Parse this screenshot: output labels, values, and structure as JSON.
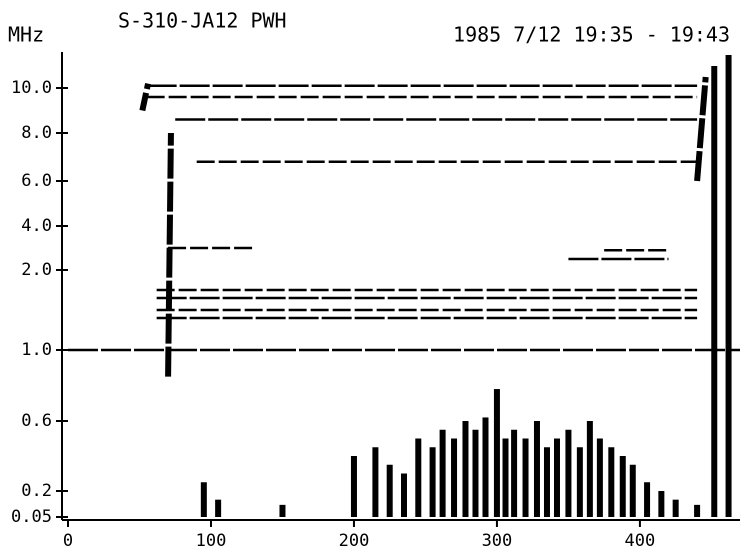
{
  "chart_data": {
    "type": "spectrogram",
    "y_label": "MHz",
    "title": "S-310-JA12 PWH",
    "subtitle": "1985 7/12 19:35 - 19:43",
    "xlim": [
      0,
      470
    ],
    "xticks": [
      0,
      100,
      200,
      300,
      400
    ],
    "ylim": [
      0.05,
      11.5
    ],
    "yticks": [
      {
        "value": 10,
        "label": "10.0"
      },
      {
        "value": 8,
        "label": "8.0"
      },
      {
        "value": 6,
        "label": "6.0"
      },
      {
        "value": 4,
        "label": "4.0"
      },
      {
        "value": 2,
        "label": "2.0"
      },
      {
        "value": 1,
        "label": "1.0"
      },
      {
        "value": 0.6,
        "label": "0.6"
      },
      {
        "value": 0.2,
        "label": "0.2"
      },
      0.05
    ],
    "color": "#000000",
    "traces": [
      {
        "x": [
          0,
          470
        ],
        "y": [
          1.0,
          1.0
        ]
      },
      {
        "x": [
          62,
          440
        ],
        "y": [
          1.75,
          1.75
        ]
      },
      {
        "x": [
          62,
          440
        ],
        "y": [
          1.65,
          1.65
        ]
      },
      {
        "x": [
          62,
          440
        ],
        "y": [
          1.5,
          1.5
        ]
      },
      {
        "x": [
          62,
          440
        ],
        "y": [
          1.4,
          1.4
        ]
      },
      {
        "x": [
          90,
          440
        ],
        "y": [
          6.8,
          6.8
        ]
      },
      {
        "x": [
          75,
          440
        ],
        "y": [
          8.6,
          8.6
        ]
      },
      {
        "x": [
          55,
          440
        ],
        "y": [
          9.6,
          9.6
        ]
      },
      {
        "x": [
          55,
          440
        ],
        "y": [
          10.1,
          10.1
        ]
      },
      {
        "x": [
          70,
          130
        ],
        "y": [
          3.0,
          3.0
        ]
      },
      {
        "x": [
          350,
          420
        ],
        "y": [
          2.5,
          2.5
        ]
      },
      {
        "x": [
          375,
          420
        ],
        "y": [
          2.9,
          2.9
        ]
      },
      {
        "x": [
          70,
          72
        ],
        "y": [
          0.85,
          8.0
        ]
      },
      {
        "x": [
          52,
          56
        ],
        "y": [
          9.0,
          10.2
        ]
      },
      {
        "x": [
          440,
          446
        ],
        "y": [
          6.0,
          10.5
        ]
      }
    ],
    "bursts": {
      "x": [
        95,
        105,
        150,
        200,
        215,
        225,
        235,
        245,
        255,
        262,
        270,
        278,
        285,
        292,
        300,
        306,
        312,
        320,
        328,
        335,
        342,
        350,
        358,
        365,
        372,
        380,
        388,
        395,
        405,
        415,
        425,
        440,
        452,
        462
      ],
      "values": [
        0.25,
        0.15,
        0.12,
        0.4,
        0.45,
        0.35,
        0.3,
        0.5,
        0.45,
        0.55,
        0.5,
        0.6,
        0.55,
        0.62,
        0.78,
        0.5,
        0.55,
        0.5,
        0.6,
        0.45,
        0.5,
        0.55,
        0.45,
        0.6,
        0.5,
        0.45,
        0.4,
        0.35,
        0.25,
        0.2,
        0.15,
        0.12,
        11.0,
        11.5
      ]
    }
  }
}
